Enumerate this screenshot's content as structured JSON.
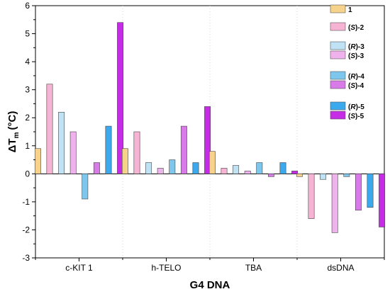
{
  "chart_data": {
    "type": "bar",
    "categories": [
      "c-KIT 1",
      "h-TELO",
      "TBA",
      "dsDNA"
    ],
    "xlabel": "G4 DNA",
    "ylabel": {
      "main": "ΔT",
      "sub": "m",
      "unit": "(°C)"
    },
    "ylim": [
      -3,
      6
    ],
    "yticks": [
      -3,
      -2,
      -1,
      0,
      1,
      2,
      3,
      4,
      5,
      6
    ],
    "grid": "vertical dotted separators between categories",
    "legend_position": "top-right",
    "series": [
      {
        "name": "1",
        "prefix": "",
        "italic": "",
        "suffix": "1",
        "color": "#f7d28a",
        "values": [
          0.9,
          0.9,
          0.8,
          -0.1
        ]
      },
      {
        "name": "(S)-2",
        "prefix": "(",
        "italic": "S",
        "suffix": ")-2",
        "color": "#f7b3d3",
        "values": [
          3.2,
          1.5,
          0.2,
          -1.6
        ]
      },
      {
        "name": "(R)-3",
        "prefix": "(",
        "italic": "R",
        "suffix": ")-3",
        "color": "#bfe3f5",
        "values": [
          2.2,
          0.4,
          0.3,
          -0.2
        ]
      },
      {
        "name": "(S)-3",
        "prefix": "(",
        "italic": "S",
        "suffix": ")-3",
        "color": "#f0b2ec",
        "values": [
          1.5,
          0.2,
          0.1,
          -2.1
        ]
      },
      {
        "name": "(R)-4",
        "prefix": "(",
        "italic": "R",
        "suffix": ")-4",
        "color": "#7dc7ee",
        "values": [
          -0.9,
          0.5,
          0.4,
          -0.1
        ]
      },
      {
        "name": "(S)-4",
        "prefix": "(",
        "italic": "S",
        "suffix": ")-4",
        "color": "#d87ae8",
        "values": [
          0.4,
          1.7,
          -0.1,
          -1.3
        ]
      },
      {
        "name": "(R)-5",
        "prefix": "(",
        "italic": "R",
        "suffix": ")-5",
        "color": "#3aa9ee",
        "values": [
          1.7,
          0.4,
          0.4,
          -1.2
        ]
      },
      {
        "name": "(S)-5",
        "prefix": "(",
        "italic": "S",
        "suffix": ")-5",
        "color": "#c62ce6",
        "values": [
          5.4,
          2.4,
          0.1,
          -1.9
        ]
      }
    ]
  }
}
